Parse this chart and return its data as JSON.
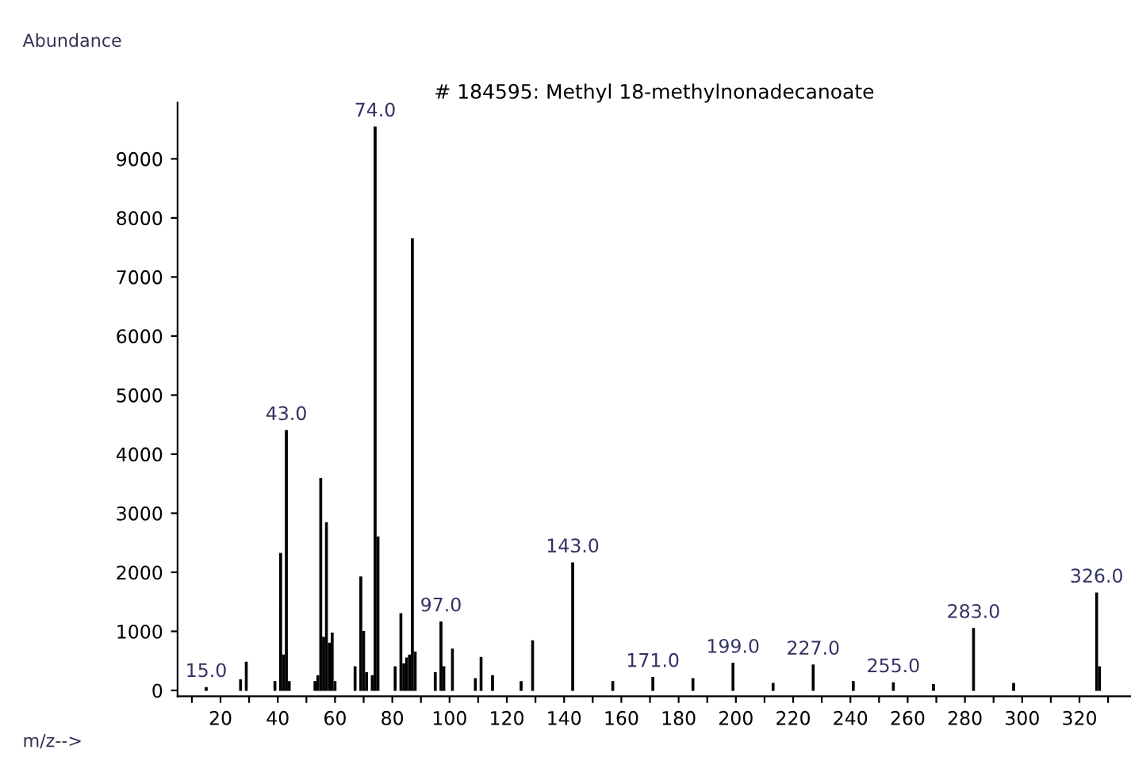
{
  "chart_data": {
    "type": "bar",
    "title": "# 184595: Methyl 18-methylnonadecanoate",
    "ylabel": "Abundance",
    "xlabel": "m/z-->",
    "x": [
      15,
      27,
      29,
      39,
      41,
      42,
      43,
      44,
      53,
      54,
      55,
      56,
      57,
      58,
      59,
      60,
      67,
      69,
      70,
      71,
      73,
      74,
      75,
      81,
      83,
      84,
      85,
      86,
      87,
      88,
      95,
      97,
      98,
      101,
      109,
      111,
      115,
      125,
      129,
      143,
      157,
      171,
      185,
      199,
      213,
      227,
      241,
      255,
      269,
      283,
      297,
      326,
      327
    ],
    "values": [
      50,
      180,
      480,
      150,
      2320,
      600,
      4400,
      150,
      150,
      250,
      3590,
      900,
      2840,
      800,
      970,
      150,
      400,
      1920,
      1000,
      300,
      250,
      9540,
      2600,
      400,
      1300,
      450,
      550,
      600,
      7650,
      650,
      300,
      1160,
      400,
      700,
      200,
      560,
      250,
      150,
      840,
      2160,
      150,
      220,
      200,
      460,
      120,
      430,
      150,
      130,
      100,
      1050,
      120,
      1650,
      400
    ],
    "color": "#000000",
    "xlim": [
      5,
      338
    ],
    "ylim": [
      -100,
      9950
    ],
    "yticks": [
      0,
      1000,
      2000,
      3000,
      4000,
      5000,
      6000,
      7000,
      8000,
      9000
    ],
    "xticks": [
      {
        "value": 10,
        "label": null
      },
      20,
      {
        "value": 30,
        "label": null
      },
      40,
      {
        "value": 50,
        "label": null
      },
      60,
      {
        "value": 70,
        "label": null
      },
      80,
      {
        "value": 90,
        "label": null
      },
      100,
      {
        "value": 110,
        "label": null
      },
      120,
      {
        "value": 130,
        "label": null
      },
      140,
      {
        "value": 150,
        "label": null
      },
      160,
      {
        "value": 170,
        "label": null
      },
      180,
      {
        "value": 190,
        "label": null
      },
      200,
      {
        "value": 210,
        "label": null
      },
      220,
      {
        "value": 230,
        "label": null
      },
      240,
      {
        "value": 250,
        "label": null
      },
      260,
      {
        "value": 270,
        "label": null
      },
      280,
      {
        "value": 290,
        "label": null
      },
      300,
      {
        "value": 310,
        "label": null
      },
      320,
      {
        "value": 330,
        "label": null
      }
    ],
    "annotations": [
      {
        "text": "15.0",
        "x": 15,
        "y": 50
      },
      {
        "text": "43.0",
        "x": 43,
        "y": 4400
      },
      {
        "text": "74.0",
        "x": 74,
        "y": 9540
      },
      {
        "text": "97.0",
        "x": 97,
        "y": 1160
      },
      {
        "text": "143.0",
        "x": 143,
        "y": 2160
      },
      {
        "text": "171.0",
        "x": 171,
        "y": 220
      },
      {
        "text": "199.0",
        "x": 199,
        "y": 460
      },
      {
        "text": "227.0",
        "x": 227,
        "y": 430
      },
      {
        "text": "255.0",
        "x": 255,
        "y": 130
      },
      {
        "text": "283.0",
        "x": 283,
        "y": 1050
      },
      {
        "text": "326.0",
        "x": 326,
        "y": 1650
      }
    ],
    "grid": false,
    "legend": false
  }
}
